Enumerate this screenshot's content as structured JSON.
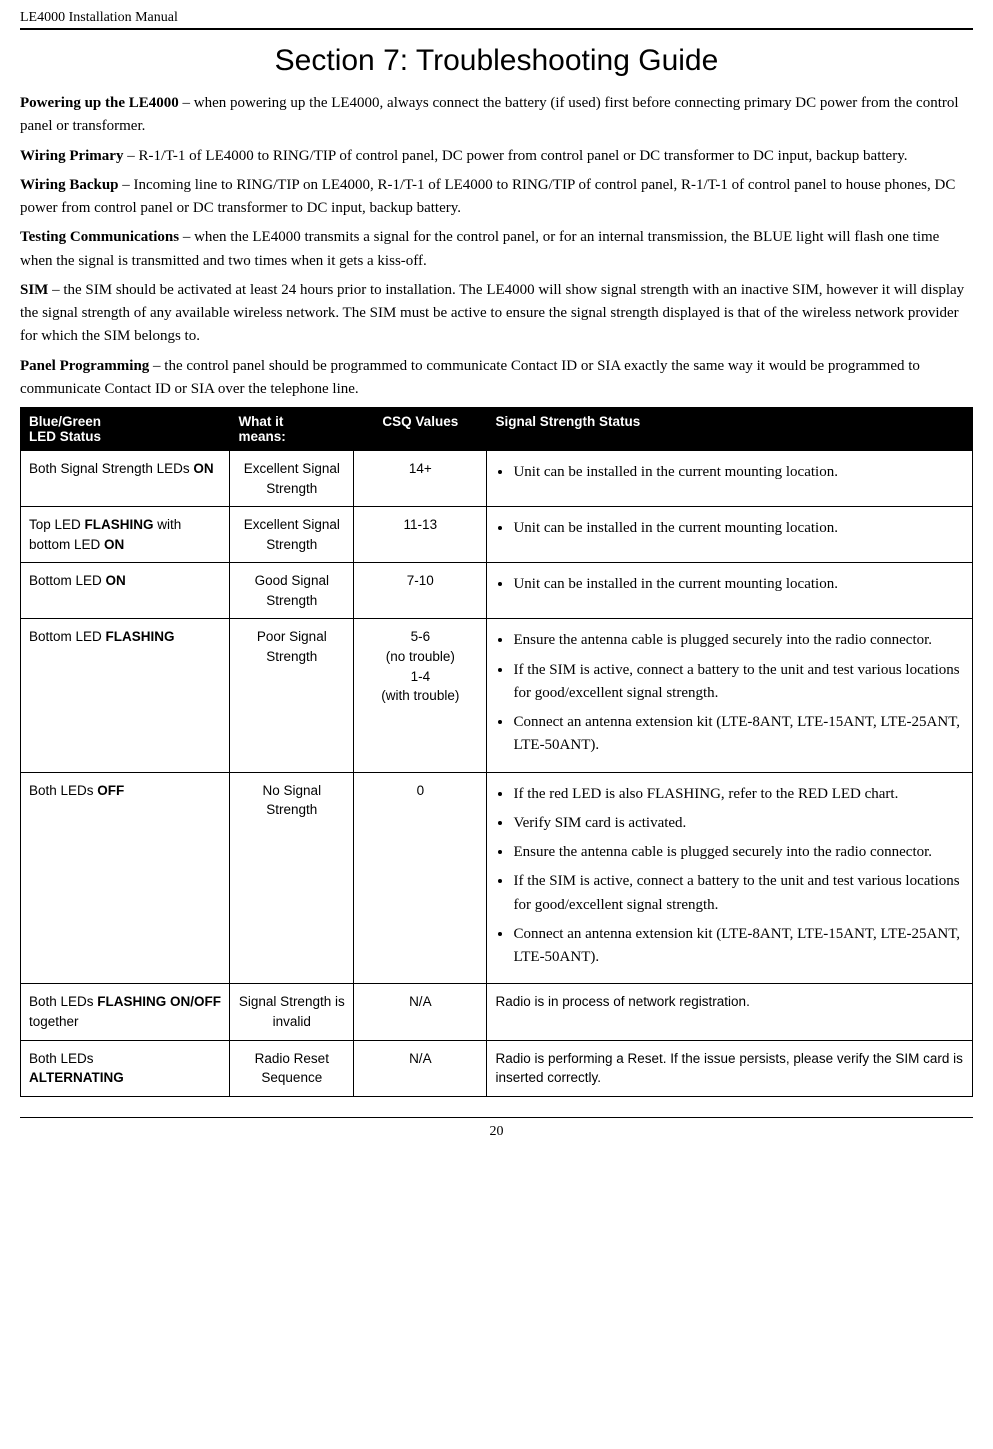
{
  "header": {
    "doc_title": "LE4000 Installation Manual"
  },
  "section_title": "Section 7: Troubleshooting Guide",
  "paras": {
    "p1_label": "Powering up the LE4000",
    "p1_text": " – when powering up the LE4000, always connect the battery (if used) first before connecting primary DC power from the control panel or transformer.",
    "p2_label": "Wiring Primary",
    "p2_text": " – R-1/T-1 of LE4000 to RING/TIP of control panel, DC power from control panel or DC transformer to DC input, backup battery.",
    "p3_label": "Wiring Backup",
    "p3_text": " – Incoming line to RING/TIP on LE4000, R-1/T-1 of LE4000 to RING/TIP of control panel, R-1/T-1 of control panel to house phones, DC power from control panel or DC transformer to DC input, backup battery.",
    "p4_label": "Testing Communications",
    "p4_text": " – when the LE4000 transmits a signal for the control panel, or for an internal transmission, the BLUE light will flash one time when the signal is transmitted and two times when it gets a kiss-off.",
    "p5_label": "SIM",
    "p5_text": " – the SIM should be activated at least 24 hours prior to installation. The LE4000 will show signal strength with an inactive SIM, however it will display the signal strength of any available wireless network. The SIM must be active to ensure the signal strength displayed is that of the wireless network provider for which the SIM belongs to.",
    "p6_label": "Panel Programming",
    "p6_text": " – the control panel should be programmed to communicate Contact ID or SIA exactly the same way it would be programmed to communicate Contact ID or SIA over the telephone line."
  },
  "table": {
    "headers": {
      "h1a": "Blue/Green",
      "h1b": "LED Status",
      "h2a": "What it",
      "h2b": "means:",
      "h3": "CSQ Values",
      "h4": "Signal Strength Status"
    },
    "r1": {
      "c1_pre": "Both Signal Strength LEDs ",
      "c1_bold": "ON",
      "c2": "Excellent Signal Strength",
      "c3": "14+",
      "b1": "Unit can be installed in the current mounting location."
    },
    "r2": {
      "c1_a": "Top LED ",
      "c1_b": "FLASHING",
      "c1_c": " with bottom LED ",
      "c1_d": "ON",
      "c2": "Excellent Signal Strength",
      "c3": "11-13",
      "b1": "Unit can be installed in the current mounting location."
    },
    "r3": {
      "c1_a": "Bottom LED ",
      "c1_b": "ON",
      "c2": "Good Signal Strength",
      "c3": "7-10",
      "b1": "Unit can be installed in the current mounting location."
    },
    "r4": {
      "c1_a": "Bottom LED ",
      "c1_b": "FLASHING",
      "c2": "Poor Signal Strength",
      "c3l1": "5-6",
      "c3l2": "(no trouble)",
      "c3l3": "1-4",
      "c3l4": "(with trouble)",
      "b1": "Ensure the antenna cable is plugged securely into the radio connector.",
      "b2": "If the SIM is active, connect a battery to the unit and test various locations for good/excellent signal strength.",
      "b3": "Connect an antenna extension kit (LTE-8ANT, LTE-15ANT, LTE-25ANT, LTE-50ANT)."
    },
    "r5": {
      "c1_a": "Both LEDs ",
      "c1_b": "OFF",
      "c2": "No Signal Strength",
      "c3": "0",
      "b1": "If the red LED is also FLASHING, refer to the RED LED chart.",
      "b2": "Verify SIM card is activated.",
      "b3": "Ensure the antenna cable is plugged securely into the radio connector.",
      "b4": "If the SIM is active, connect a battery to the unit and test various locations for good/excellent signal strength.",
      "b5": "Connect an antenna extension kit (LTE-8ANT, LTE-15ANT, LTE-25ANT, LTE-50ANT)."
    },
    "r6": {
      "c1_a": "Both LEDs ",
      "c1_b": "FLASHING ON/OFF",
      "c1_c": " together",
      "c2": "Signal Strength is invalid",
      "c3": "N/A",
      "c4": "Radio is in process of network registration."
    },
    "r7": {
      "c1_a": "Both LEDs ",
      "c1_b": "ALTERNATING",
      "c2": "Radio Reset Sequence",
      "c3": "N/A",
      "c4": "Radio is performing a Reset. If the issue persists, please verify the SIM card is inserted correctly."
    }
  },
  "footer": {
    "page_number": "20"
  },
  "layout": {
    "col_widths": {
      "c1": "22%",
      "c2": "13%",
      "c3": "14%",
      "c4": "51%"
    }
  }
}
